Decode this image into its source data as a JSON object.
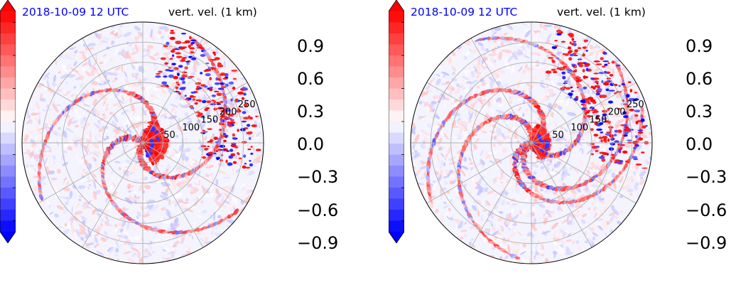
{
  "colors": {
    "date": "#0000ff",
    "text": "#000000",
    "grid": "#b0b0b0",
    "positive": "#ff0000",
    "negative": "#0000ff"
  },
  "panels": [
    {
      "date_label": "2018-10-09 12 UTC",
      "var_label": "vert. vel. (1 km)"
    },
    {
      "date_label": "2018-10-09 12 UTC",
      "var_label": "vert. vel. (1 km)"
    }
  ],
  "chart_data": [
    {
      "type": "heatmap",
      "projection": "polar",
      "title_left": "2018-10-09 12 UTC",
      "title_right": "vert. vel. (1 km)",
      "radial_ticks": [
        "50",
        "100",
        "150",
        "200",
        "250"
      ],
      "radial_tick_values": [
        50,
        100,
        150,
        200,
        250
      ],
      "radial_max": 300,
      "angular_grid_deg": [
        0,
        30,
        60,
        90,
        120,
        150,
        180,
        210,
        240,
        270,
        300,
        330
      ],
      "colorbar": {
        "ticks": [
          "0.9",
          "0.6",
          "0.3",
          "0.0",
          "−0.3",
          "−0.6",
          "−0.9"
        ],
        "tick_values": [
          0.9,
          0.6,
          0.3,
          0.0,
          -0.3,
          -0.6,
          -0.9
        ],
        "vmin": -1.0,
        "vmax": 1.0,
        "extend": "both",
        "cmap": "bwr"
      },
      "grid": true
    },
    {
      "type": "heatmap",
      "projection": "polar",
      "title_left": "2018-10-09 12 UTC",
      "title_right": "vert. vel. (1 km)",
      "radial_ticks": [
        "50",
        "100",
        "150",
        "200",
        "250"
      ],
      "radial_tick_values": [
        50,
        100,
        150,
        200,
        250
      ],
      "radial_max": 300,
      "angular_grid_deg": [
        0,
        30,
        60,
        90,
        120,
        150,
        180,
        210,
        240,
        270,
        300,
        330
      ],
      "colorbar": {
        "ticks": [
          "0.9",
          "0.6",
          "0.3",
          "0.0",
          "−0.3",
          "−0.6",
          "−0.9"
        ],
        "tick_values": [
          0.9,
          0.6,
          0.3,
          0.0,
          -0.3,
          -0.6,
          -0.9
        ],
        "vmin": -1.0,
        "vmax": 1.0,
        "extend": "both",
        "cmap": "bwr"
      },
      "grid": true
    }
  ]
}
